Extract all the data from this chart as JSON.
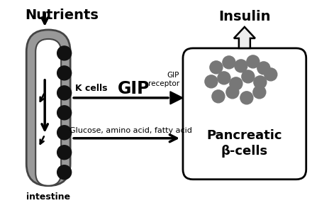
{
  "bg_color": "#ffffff",
  "intestine_outer_color": "#999999",
  "intestine_lumen_color": "#ffffff",
  "cell_color": "#111111",
  "title_nutrients": "Nutrients",
  "title_insulin": "Insulin",
  "label_intestine": "intestine",
  "label_kcells": "K cells",
  "label_gip": "GIP",
  "label_gip_receptor": "GIP\nreceptor",
  "label_glucose": "Glucose, amino acid, fatty acid",
  "label_pancreatic": "Pancreatic\nβ-cells",
  "vesicle_color": "#777777",
  "arrow_color": "#000000"
}
